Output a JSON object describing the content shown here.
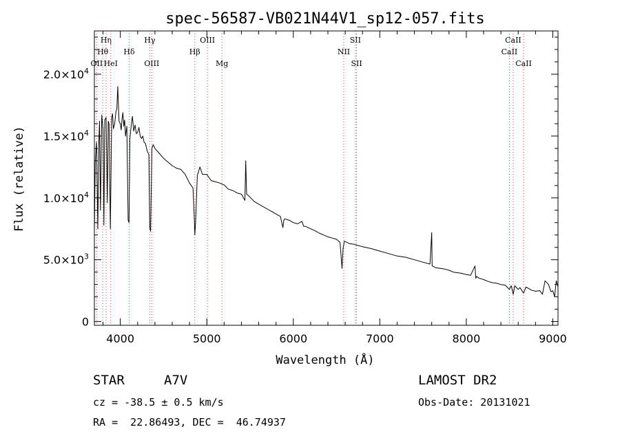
{
  "info": {
    "object_class": "STAR",
    "subclass": "A7V",
    "survey": "LAMOST DR2",
    "cz": "cz = -38.5 ± 0.5 km/s",
    "obs_date": "Obs-Date: 20131021",
    "coords": "RA =  22.86493, DEC =  46.74937"
  },
  "chart_data": {
    "type": "line",
    "title": "spec-56587-VB021N44V1_sp12-057.fits",
    "xlabel": "Wavelength (Å)",
    "ylabel": "Flux (relative)",
    "xlim": [
      3700,
      9060
    ],
    "ylim": [
      -300,
      23500
    ],
    "grid": false,
    "x_ticks": [
      4000,
      5000,
      6000,
      7000,
      8000,
      9000
    ],
    "y_ticks": [
      {
        "value": 0,
        "label": "0"
      },
      {
        "value": 5000,
        "label": "5.0×10",
        "exp": "3"
      },
      {
        "value": 10000,
        "label": "1.0×10",
        "exp": "4"
      },
      {
        "value": 15000,
        "label": "1.5×10",
        "exp": "4"
      },
      {
        "value": 20000,
        "label": "2.0×10",
        "exp": "4"
      }
    ],
    "series": [
      {
        "x": [
          3700,
          3710,
          3725,
          3740,
          3750,
          3760,
          3770,
          3785,
          3800,
          3810,
          3820,
          3835,
          3850,
          3860,
          3870,
          3885,
          3900,
          3910,
          3920,
          3935,
          3950,
          3960,
          3970,
          3985,
          4000,
          4010,
          4020,
          4030,
          4040,
          4050,
          4060,
          4075,
          4090,
          4101,
          4110,
          4125,
          4140,
          4155,
          4170,
          4185,
          4200,
          4215,
          4230,
          4245,
          4260,
          4275,
          4290,
          4310,
          4330,
          4340,
          4350,
          4365,
          4380,
          4400,
          4450,
          4500,
          4550,
          4600,
          4650,
          4700,
          4750,
          4800,
          4840,
          4855,
          4861,
          4870,
          4890,
          4920,
          4950,
          5000,
          5050,
          5100,
          5150,
          5200,
          5250,
          5300,
          5350,
          5400,
          5440,
          5450,
          5460,
          5480,
          5550,
          5600,
          5650,
          5700,
          5750,
          5800,
          5850,
          5880,
          5890,
          5900,
          5950,
          6000,
          6050,
          6100,
          6120,
          6140,
          6200,
          6250,
          6300,
          6350,
          6400,
          6450,
          6500,
          6540,
          6560,
          6563,
          6575,
          6590,
          6650,
          6700,
          6750,
          6800,
          6900,
          7000,
          7100,
          7200,
          7300,
          7400,
          7500,
          7580,
          7600,
          7605,
          7620,
          7650,
          7700,
          7750,
          7800,
          7850,
          7900,
          7950,
          8000,
          8050,
          8100,
          8110,
          8120,
          8150,
          8200,
          8250,
          8300,
          8350,
          8400,
          8450,
          8498,
          8520,
          8542,
          8560,
          8600,
          8620,
          8662,
          8690,
          8750,
          8800,
          8850,
          8880,
          8910,
          8950,
          8980,
          9000,
          9020,
          9040,
          9060
        ],
        "y": [
          7200,
          13000,
          14500,
          7500,
          14200,
          16200,
          9000,
          16700,
          15500,
          7800,
          16300,
          16500,
          9600,
          16200,
          16000,
          7500,
          16500,
          16800,
          15600,
          16000,
          17000,
          17200,
          19000,
          16200,
          16000,
          15500,
          16400,
          16900,
          15800,
          16300,
          15000,
          15800,
          8200,
          8000,
          14800,
          15800,
          16600,
          15400,
          15900,
          15200,
          15300,
          15700,
          15000,
          14800,
          15000,
          14500,
          14400,
          13800,
          13500,
          7600,
          7300,
          14000,
          14300,
          14000,
          13600,
          13200,
          12900,
          12600,
          12400,
          12300,
          11900,
          11200,
          10800,
          8500,
          7000,
          8000,
          11800,
          12500,
          11900,
          11900,
          11400,
          11300,
          11200,
          11050,
          10700,
          10600,
          10400,
          10300,
          9800,
          13000,
          10300,
          10200,
          9700,
          9500,
          9300,
          9100,
          8900,
          8700,
          8500,
          7600,
          8200,
          8300,
          8200,
          8000,
          7900,
          8100,
          7700,
          7700,
          7500,
          7350,
          7150,
          7000,
          6850,
          6750,
          6650,
          6400,
          4600,
          4300,
          5900,
          6500,
          6300,
          6250,
          6150,
          6050,
          5900,
          5700,
          5500,
          5300,
          5200,
          5000,
          4800,
          4650,
          7200,
          4500,
          4450,
          4350,
          4300,
          4250,
          4150,
          4000,
          3950,
          3900,
          3800,
          3750,
          4500,
          3500,
          3650,
          3500,
          3400,
          3250,
          3150,
          3100,
          3000,
          2950,
          2600,
          2900,
          2200,
          2900,
          2600,
          2750,
          2300,
          2800,
          2550,
          2450,
          2500,
          2200,
          3300,
          3000,
          2400,
          2500,
          2000,
          3300,
          2800
        ]
      }
    ],
    "line_markers": [
      {
        "label": "Hη",
        "x": 3835,
        "tier": 1
      },
      {
        "label": "Hθ",
        "x": 3797,
        "tier": 2
      },
      {
        "label": "OII",
        "x": 3727,
        "tier": 3
      },
      {
        "label": "HeI",
        "x": 3889,
        "tier": 3
      },
      {
        "label": "Hδ",
        "x": 4102,
        "tier": 2
      },
      {
        "label": "Hγ",
        "x": 4340,
        "tier": 1
      },
      {
        "label": "OIII",
        "x": 4363,
        "tier": 3
      },
      {
        "label": "OIII",
        "x": 5007,
        "tier": 1
      },
      {
        "label": "Hβ",
        "x": 4861,
        "tier": 2
      },
      {
        "label": "Mg",
        "x": 5175,
        "tier": 3
      },
      {
        "label": "SII",
        "x": 6717,
        "tier": 1
      },
      {
        "label": "NII",
        "x": 6583,
        "tier": 2
      },
      {
        "label": "SII",
        "x": 6731,
        "tier": 3
      },
      {
        "label": "CaII",
        "x": 8542,
        "tier": 1
      },
      {
        "label": "CaII",
        "x": 8498,
        "tier": 2
      },
      {
        "label": "CaII",
        "x": 8662,
        "tier": 3
      }
    ]
  }
}
